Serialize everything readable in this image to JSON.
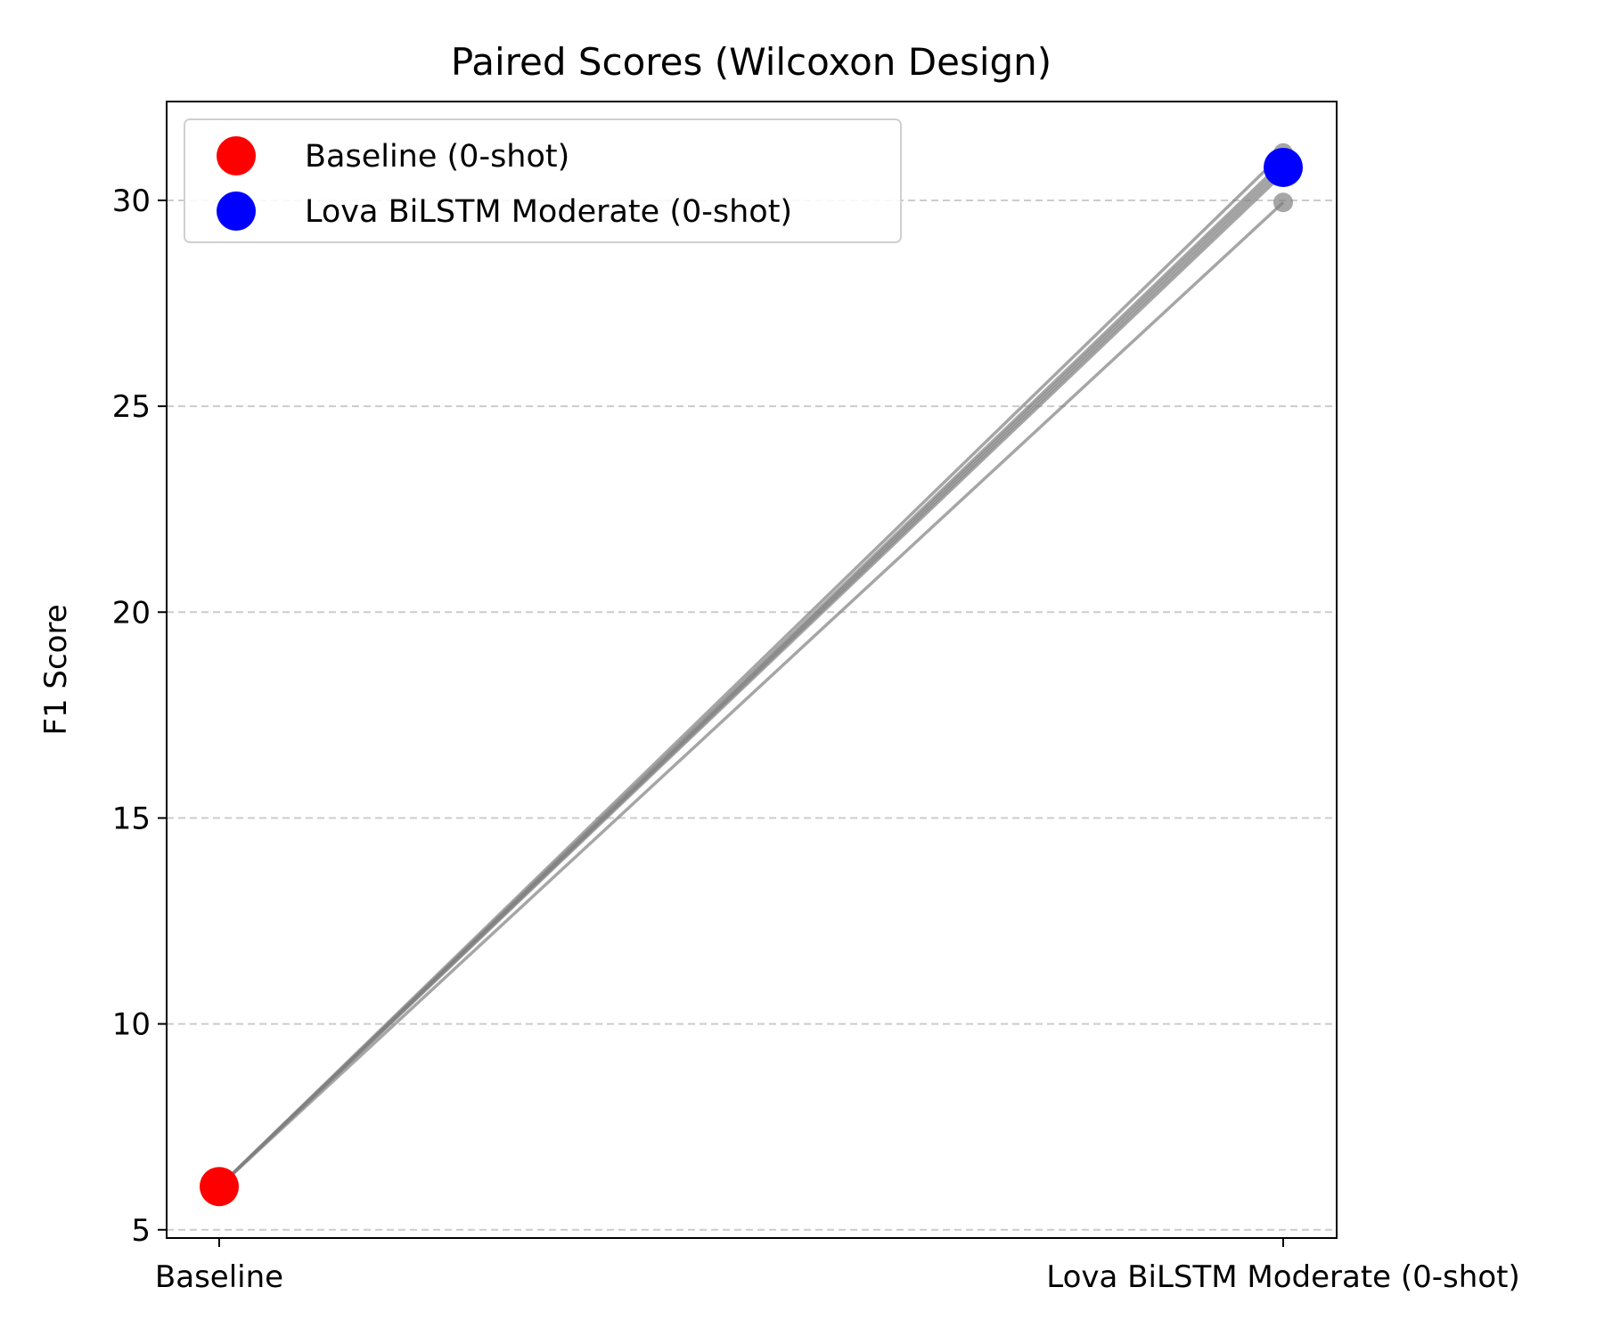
{
  "chart_data": {
    "type": "line",
    "title": "Paired Scores (Wilcoxon Design)",
    "xlabel": "",
    "ylabel": "F1 Score",
    "categories": [
      "Baseline",
      "Lova BiLSTM Moderate (0-shot)"
    ],
    "ylim": [
      4.8,
      32.4
    ],
    "yticks": [
      5,
      10,
      15,
      20,
      25,
      30
    ],
    "grid": "y-dashed",
    "legend_position": "top-left",
    "pairs": [
      [
        6.05,
        31.15
      ],
      [
        6.05,
        30.95
      ],
      [
        6.05,
        30.85
      ],
      [
        6.05,
        30.75
      ],
      [
        6.05,
        30.65
      ],
      [
        6.05,
        29.95
      ]
    ],
    "series": [
      {
        "name": "Baseline (0-shot)",
        "color": "#ff0000",
        "category": "Baseline",
        "mean": 6.05
      },
      {
        "name": "Lova BiLSTM Moderate (0-shot)",
        "color": "#0000ff",
        "category": "Lova BiLSTM Moderate (0-shot)",
        "mean": 30.8
      }
    ],
    "pair_line_color": "#808080"
  }
}
